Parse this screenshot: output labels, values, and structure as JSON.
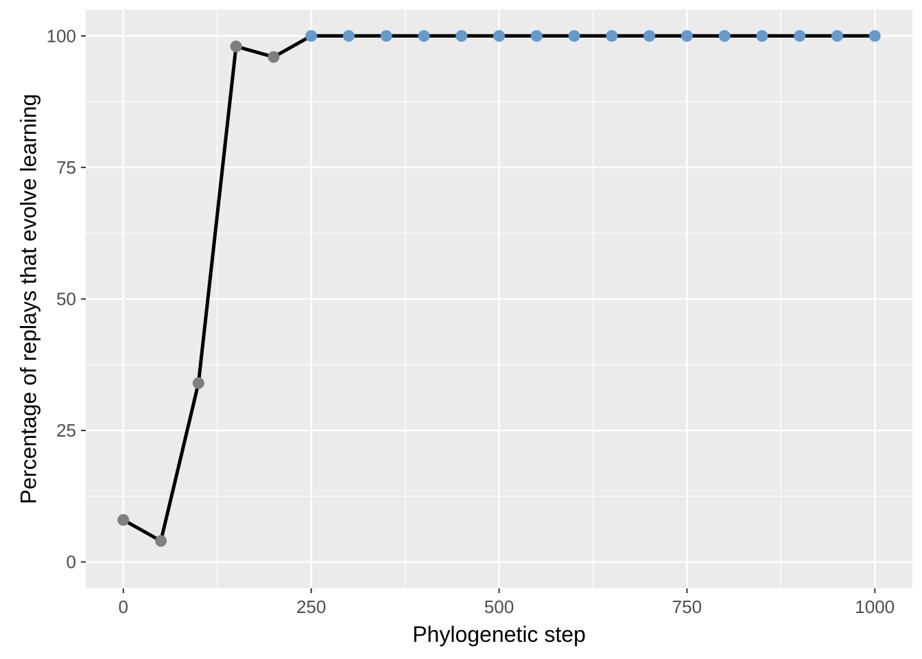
{
  "chart_data": {
    "type": "line",
    "title": "",
    "xlabel": "Phylogenetic step",
    "ylabel": "Percentage of replays that evolve learning",
    "xlim": [
      -50,
      1050
    ],
    "ylim": [
      -5,
      105
    ],
    "x_ticks": [
      0,
      250,
      500,
      750,
      1000
    ],
    "y_ticks": [
      0,
      25,
      50,
      75,
      100
    ],
    "grid": true,
    "legend": "none",
    "colors": {
      "panel": "#ebebeb",
      "grid": "#ffffff",
      "line": "#000000",
      "point_not_all": "#7f7f7f",
      "point_all": "#6699cc"
    },
    "series": [
      {
        "x": [
          0,
          50,
          100,
          150,
          200,
          250,
          300,
          350,
          400,
          450,
          500,
          550,
          600,
          650,
          700,
          750,
          800,
          850,
          900,
          950,
          1000
        ],
        "y": [
          8,
          4,
          34,
          98,
          96,
          100,
          100,
          100,
          100,
          100,
          100,
          100,
          100,
          100,
          100,
          100,
          100,
          100,
          100,
          100,
          100
        ]
      }
    ]
  }
}
